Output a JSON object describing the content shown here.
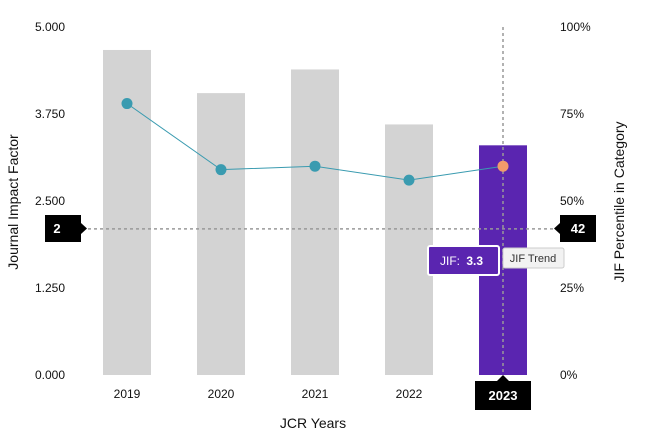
{
  "chart_data": {
    "type": "bar",
    "categories": [
      "2019",
      "2020",
      "2021",
      "2022",
      "2023"
    ],
    "series": [
      {
        "kind": "bar",
        "axis": "left",
        "values": [
          4.67,
          4.05,
          4.39,
          3.6,
          3.3
        ],
        "color": "#d3d3d3",
        "highlight_color": "#5a25b0",
        "highlight_index": 4
      },
      {
        "name": "JIF Trend",
        "kind": "line",
        "axis": "right",
        "values": [
          78,
          59,
          60,
          56,
          60
        ],
        "color": "#3a9bb0",
        "highlight_color": "#f39a6b",
        "highlight_index": 4
      }
    ],
    "xlabel": "JCR Years",
    "ylabel": "Journal Impact Factor",
    "y2label": "JIF Percentile in Category",
    "ylim": [
      0,
      5
    ],
    "y2lim": [
      0,
      100
    ],
    "yticks": [
      "0.000",
      "1.250",
      "2.500",
      "3.750",
      "5.000"
    ],
    "y2ticks": [
      "0%",
      "25%",
      "50%",
      "75%",
      "100%"
    ],
    "crosshair": {
      "x_category": "2023",
      "left_value": 2.1,
      "left_label": "2",
      "right_label": "42",
      "x_label": "2023"
    },
    "tooltip": {
      "label": "JIF:",
      "value": "3.3",
      "series_label": "JIF Trend"
    },
    "grid": false
  }
}
